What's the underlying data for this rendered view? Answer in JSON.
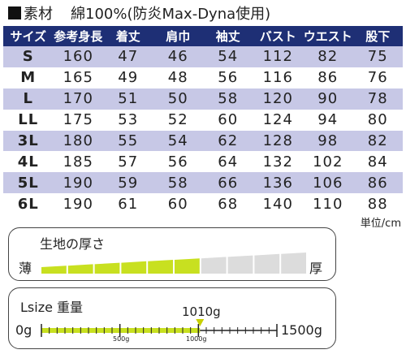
{
  "material": {
    "label": "素材",
    "value": "綿100%(防炎Max-Dyna使用)"
  },
  "size_table": {
    "headers": [
      "サイズ",
      "参考身長",
      "着丈",
      "肩巾",
      "袖丈",
      "バスト",
      "ウエスト",
      "股下"
    ],
    "rows": [
      [
        "S",
        "160",
        "47",
        "46",
        "54",
        "112",
        "82",
        "75"
      ],
      [
        "M",
        "165",
        "49",
        "48",
        "56",
        "116",
        "86",
        "76"
      ],
      [
        "L",
        "170",
        "51",
        "50",
        "58",
        "120",
        "90",
        "78"
      ],
      [
        "LL",
        "175",
        "53",
        "52",
        "60",
        "124",
        "94",
        "80"
      ],
      [
        "3L",
        "180",
        "55",
        "54",
        "62",
        "128",
        "98",
        "82"
      ],
      [
        "4L",
        "185",
        "57",
        "56",
        "64",
        "132",
        "102",
        "84"
      ],
      [
        "5L",
        "190",
        "59",
        "58",
        "66",
        "136",
        "106",
        "86"
      ],
      [
        "6L",
        "190",
        "61",
        "60",
        "68",
        "140",
        "110",
        "88"
      ]
    ],
    "unit": "単位/cm"
  },
  "thickness": {
    "title": "生地の厚さ",
    "thin_label": "薄",
    "thick_label": "厚",
    "level": 6,
    "max_level": 10,
    "fill_color": "#c8e020",
    "empty_color": "#dcdcdc"
  },
  "weight": {
    "title": "Lsize 重量",
    "value_label": "1010g",
    "value": 1010,
    "min": 0,
    "max": 1500,
    "min_label": "0g",
    "max_label": "1500g",
    "mid_label_500": "500g",
    "mid_label_1000": "1000g",
    "fill_color": "#c8e020",
    "marker_color": "#c8d000"
  }
}
